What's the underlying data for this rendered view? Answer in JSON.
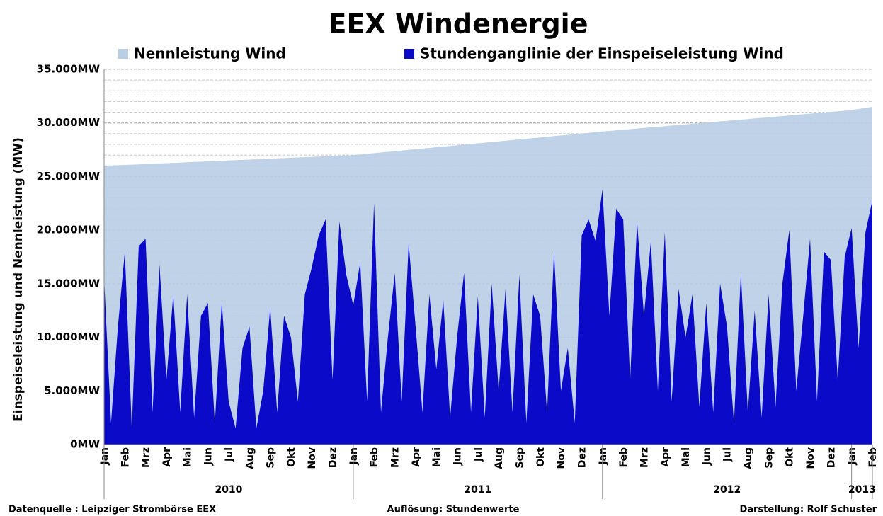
{
  "chart_data": {
    "type": "area",
    "title": "EEX Windenergie",
    "y_label": "Einspeiseleistung und Nennleistung (MW)",
    "categories": [
      "Jan",
      null,
      null,
      "Feb",
      null,
      null,
      "Mrz",
      null,
      null,
      "Apr",
      null,
      null,
      "Mai",
      null,
      null,
      "Jun",
      null,
      null,
      "Jul",
      null,
      null,
      "Aug",
      null,
      null,
      "Sep",
      null,
      null,
      "Okt",
      null,
      null,
      "Nov",
      null,
      null,
      "Dez",
      null,
      null,
      "Jan",
      null,
      null,
      "Feb",
      null,
      null,
      "Mrz",
      null,
      null,
      "Apr",
      null,
      null,
      "Mai",
      null,
      null,
      "Jun",
      null,
      null,
      "Jul",
      null,
      null,
      "Aug",
      null,
      null,
      "Sep",
      null,
      null,
      "Okt",
      null,
      null,
      "Nov",
      null,
      null,
      "Dez",
      null,
      null,
      "Jan",
      null,
      null,
      "Feb",
      null,
      null,
      "Mrz",
      null,
      null,
      "Apr",
      null,
      null,
      "Mai",
      null,
      null,
      "Jun",
      null,
      null,
      "Jul",
      null,
      null,
      "Aug",
      null,
      null,
      "Sep",
      null,
      null,
      "Okt",
      null,
      null,
      "Nov",
      null,
      null,
      "Dez",
      null,
      null,
      "Jan",
      null,
      null,
      "Feb"
    ],
    "years": [
      "2010",
      "2011",
      "2012",
      "2013"
    ],
    "series": [
      {
        "name": "Nennleistung Wind",
        "color": "#b9cde5",
        "values": [
          26000,
          26028,
          26056,
          26083,
          26111,
          26139,
          26167,
          26194,
          26222,
          26250,
          26278,
          26306,
          26333,
          26361,
          26389,
          26417,
          26444,
          26472,
          26500,
          26528,
          26556,
          26583,
          26611,
          26639,
          26667,
          26694,
          26722,
          26750,
          26778,
          26806,
          26833,
          26861,
          26889,
          26917,
          26944,
          26972,
          27000,
          27061,
          27122,
          27183,
          27244,
          27306,
          27367,
          27428,
          27489,
          27550,
          27611,
          27672,
          27733,
          27794,
          27856,
          27917,
          27978,
          28039,
          28100,
          28161,
          28222,
          28283,
          28344,
          28406,
          28467,
          28528,
          28589,
          28650,
          28711,
          28772,
          28833,
          28894,
          28956,
          29017,
          29078,
          29139,
          29200,
          29256,
          29311,
          29367,
          29422,
          29478,
          29533,
          29589,
          29644,
          29700,
          29756,
          29811,
          29867,
          29922,
          29978,
          30033,
          30089,
          30144,
          30200,
          30256,
          30311,
          30367,
          30422,
          30478,
          30533,
          30589,
          30644,
          30700,
          30756,
          30811,
          30867,
          30922,
          30978,
          31033,
          31089,
          31144,
          31200,
          31300,
          31400,
          31500
        ]
      },
      {
        "name": "Stundenganglinie der Einspeiseleistung Wind",
        "color": "#0a0ac8",
        "values": [
          15500,
          2000,
          11000,
          18000,
          1500,
          18500,
          19200,
          3000,
          16800,
          6000,
          14000,
          3000,
          14000,
          2500,
          12000,
          13200,
          2000,
          13300,
          4000,
          1500,
          9000,
          11000,
          1500,
          5000,
          12800,
          3000,
          12000,
          10000,
          4000,
          14000,
          16500,
          19500,
          21000,
          6000,
          20800,
          15800,
          13000,
          17000,
          4000,
          22500,
          3000,
          10000,
          16000,
          4000,
          18800,
          11000,
          3000,
          14000,
          7000,
          13500,
          2500,
          10000,
          16000,
          3000,
          13800,
          2500,
          15000,
          5000,
          14500,
          3000,
          15800,
          2000,
          14000,
          12000,
          3000,
          18000,
          5000,
          9000,
          2000,
          19500,
          21000,
          19000,
          23800,
          12000,
          22000,
          21000,
          6000,
          20800,
          12000,
          19000,
          5000,
          19800,
          4000,
          14500,
          10000,
          14000,
          3500,
          13200,
          3000,
          15000,
          11000,
          2000,
          16000,
          3000,
          12500,
          2500,
          14000,
          3500,
          15000,
          20000,
          5000,
          12000,
          19200,
          4000,
          18000,
          17200,
          6000,
          17500,
          20200,
          9000,
          19800,
          22800
        ]
      }
    ],
    "ylim": [
      0,
      35000
    ],
    "yticks": [
      {
        "value": 0,
        "label": "0MW"
      },
      {
        "value": 5000,
        "label": "5.000MW"
      },
      {
        "value": 10000,
        "label": "10.000MW"
      },
      {
        "value": 15000,
        "label": "15.000MW"
      },
      {
        "value": 20000,
        "label": "20.000MW"
      },
      {
        "value": 25000,
        "label": "25.000MW"
      },
      {
        "value": 30000,
        "label": "30.000MW"
      },
      {
        "value": 35000,
        "label": "35.000MW"
      }
    ],
    "minor_grid": 1000,
    "footer": {
      "source": "Datenquelle :  Leipziger Strombörse EEX",
      "resolution": "Auflösung: Stundenwerte",
      "author": "Darstellung: Rolf Schuster"
    }
  }
}
